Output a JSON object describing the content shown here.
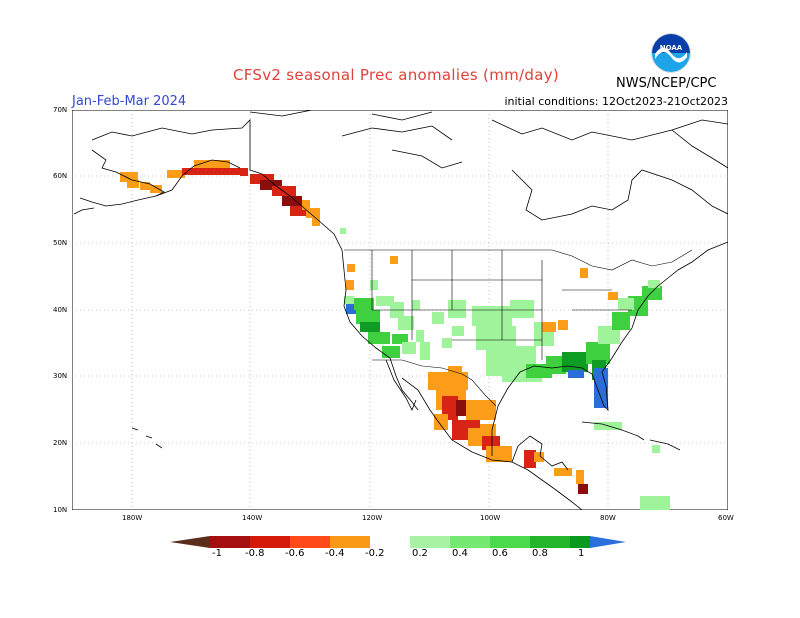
{
  "header": {
    "title": "CFSv2 seasonal Prec anomalies (mm/day)",
    "period": "Jan-Feb-Mar 2024",
    "initial_conditions": "initial conditions: 12Oct2023-21Oct2023",
    "organization": "NWS/NCEP/CPC",
    "logo_text": "NOAA",
    "logo_icon": "noaa-logo-icon"
  },
  "map": {
    "lat_labels": [
      "70N",
      "60N",
      "50N",
      "40N",
      "30N",
      "20N",
      "10N"
    ],
    "lon_labels": [
      "180W",
      "140W",
      "120W",
      "100W",
      "80W",
      "60W"
    ]
  },
  "colorbar": {
    "labels": [
      "-1",
      "-0.8",
      "-0.6",
      "-0.4",
      "-0.2",
      "0.2",
      "0.4",
      "0.6",
      "0.8",
      "1"
    ],
    "colors": [
      "#5a2e1a",
      "#a50f0f",
      "#d51a0a",
      "#ff4b18",
      "#fa9a14",
      "#ffffff",
      "#a6f3a4",
      "#76e973",
      "#4bd94d",
      "#25b52b",
      "#0a9a20",
      "#2c6fdb"
    ]
  },
  "legend_colors": {
    "dry_strong": "#8b0e0e",
    "dry_mid": "#d72414",
    "dry_weak": "#fb9d19",
    "wet_weak": "#9ff39a",
    "wet_mid": "#3fd040",
    "wet_strong": "#0f9c24",
    "wet_max": "#2b6ed9"
  }
}
